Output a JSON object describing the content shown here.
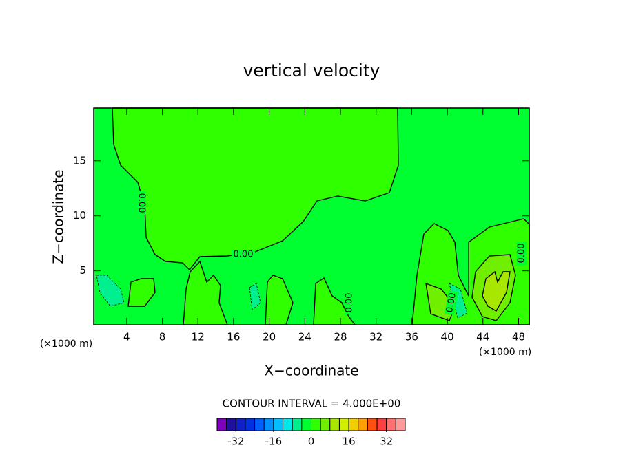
{
  "chart_data": {
    "type": "contour",
    "title": "vertical velocity",
    "x_label": "X−coordinate",
    "y_label": "Z−coordinate",
    "x_unit_label": "(×1000 m)",
    "xlim": [
      0.3,
      49.2
    ],
    "ylim": [
      0.1,
      19.8
    ],
    "xticks": [
      4,
      8,
      12,
      16,
      20,
      24,
      28,
      32,
      36,
      40,
      44,
      48
    ],
    "yticks": [
      5,
      10,
      15
    ],
    "contour_label": "0.00",
    "contour_interval": "CONTOUR INTERVAL = 4.000E+00",
    "colorbar_lim": [
      -40,
      40
    ],
    "colorbar_ticks": [
      -32,
      -16,
      0,
      16,
      32
    ],
    "colors": [
      "#8000c0",
      "#2010a0",
      "#1020c8",
      "#0030e0",
      "#0060ff",
      "#0090ff",
      "#00c0ff",
      "#00e8e8",
      "#00f090",
      "#00ff30",
      "#30ff00",
      "#70f000",
      "#a8e800",
      "#d0f000",
      "#f0d000",
      "#ffa000",
      "#ff5010",
      "#ff4040",
      "#ff7070",
      "#ff9a9a"
    ]
  }
}
